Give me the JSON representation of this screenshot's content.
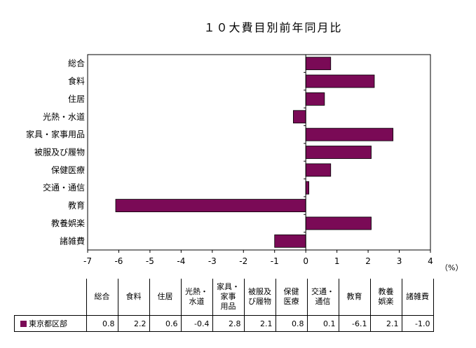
{
  "chart_data": {
    "type": "bar",
    "orientation": "horizontal",
    "title": "１０大費目別前年同月比",
    "categories": [
      "総合",
      "食料",
      "住居",
      "光熱・水道",
      "家具・家事用品",
      "被服及び履物",
      "保健医療",
      "交通・通信",
      "教育",
      "教養娯楽",
      "諸雑費"
    ],
    "series": [
      {
        "name": "東京都区部",
        "values": [
          0.8,
          2.2,
          0.6,
          -0.4,
          2.8,
          2.1,
          0.8,
          0.1,
          -6.1,
          2.1,
          -1.0
        ]
      }
    ],
    "xlim": [
      -7,
      4
    ],
    "x_ticks": [
      "-7",
      "-6",
      "-5",
      "-4",
      "-3",
      "-2",
      "-1",
      "0",
      "1",
      "2",
      "3",
      "4"
    ],
    "unit": "（%）",
    "bar_color": "#7a0a56",
    "legend_color": "#7a0a56",
    "grid": false
  },
  "table": {
    "headers": [
      "総合",
      "食料",
      "住居",
      "光熱・水道",
      "家具・家事用品",
      "被服及び履物",
      "保健医療",
      "交通・通信",
      "教育",
      "教養娯楽",
      "諸雑費"
    ],
    "header_lines": [
      [
        "総合"
      ],
      [
        "食料"
      ],
      [
        "住居"
      ],
      [
        "光熱・",
        "水道"
      ],
      [
        "家具・",
        "家事",
        "用品"
      ],
      [
        "被服及",
        "び履物"
      ],
      [
        "保健",
        "医療"
      ],
      [
        "交通・",
        "通信"
      ],
      [
        "教育"
      ],
      [
        "教養",
        "娯楽"
      ],
      [
        "諸雑費"
      ]
    ],
    "row_label": "東京都区部",
    "values": [
      "0.8",
      "2.2",
      "0.6",
      "-0.4",
      "2.8",
      "2.1",
      "0.8",
      "0.1",
      "-6.1",
      "2.1",
      "-1.0"
    ]
  }
}
